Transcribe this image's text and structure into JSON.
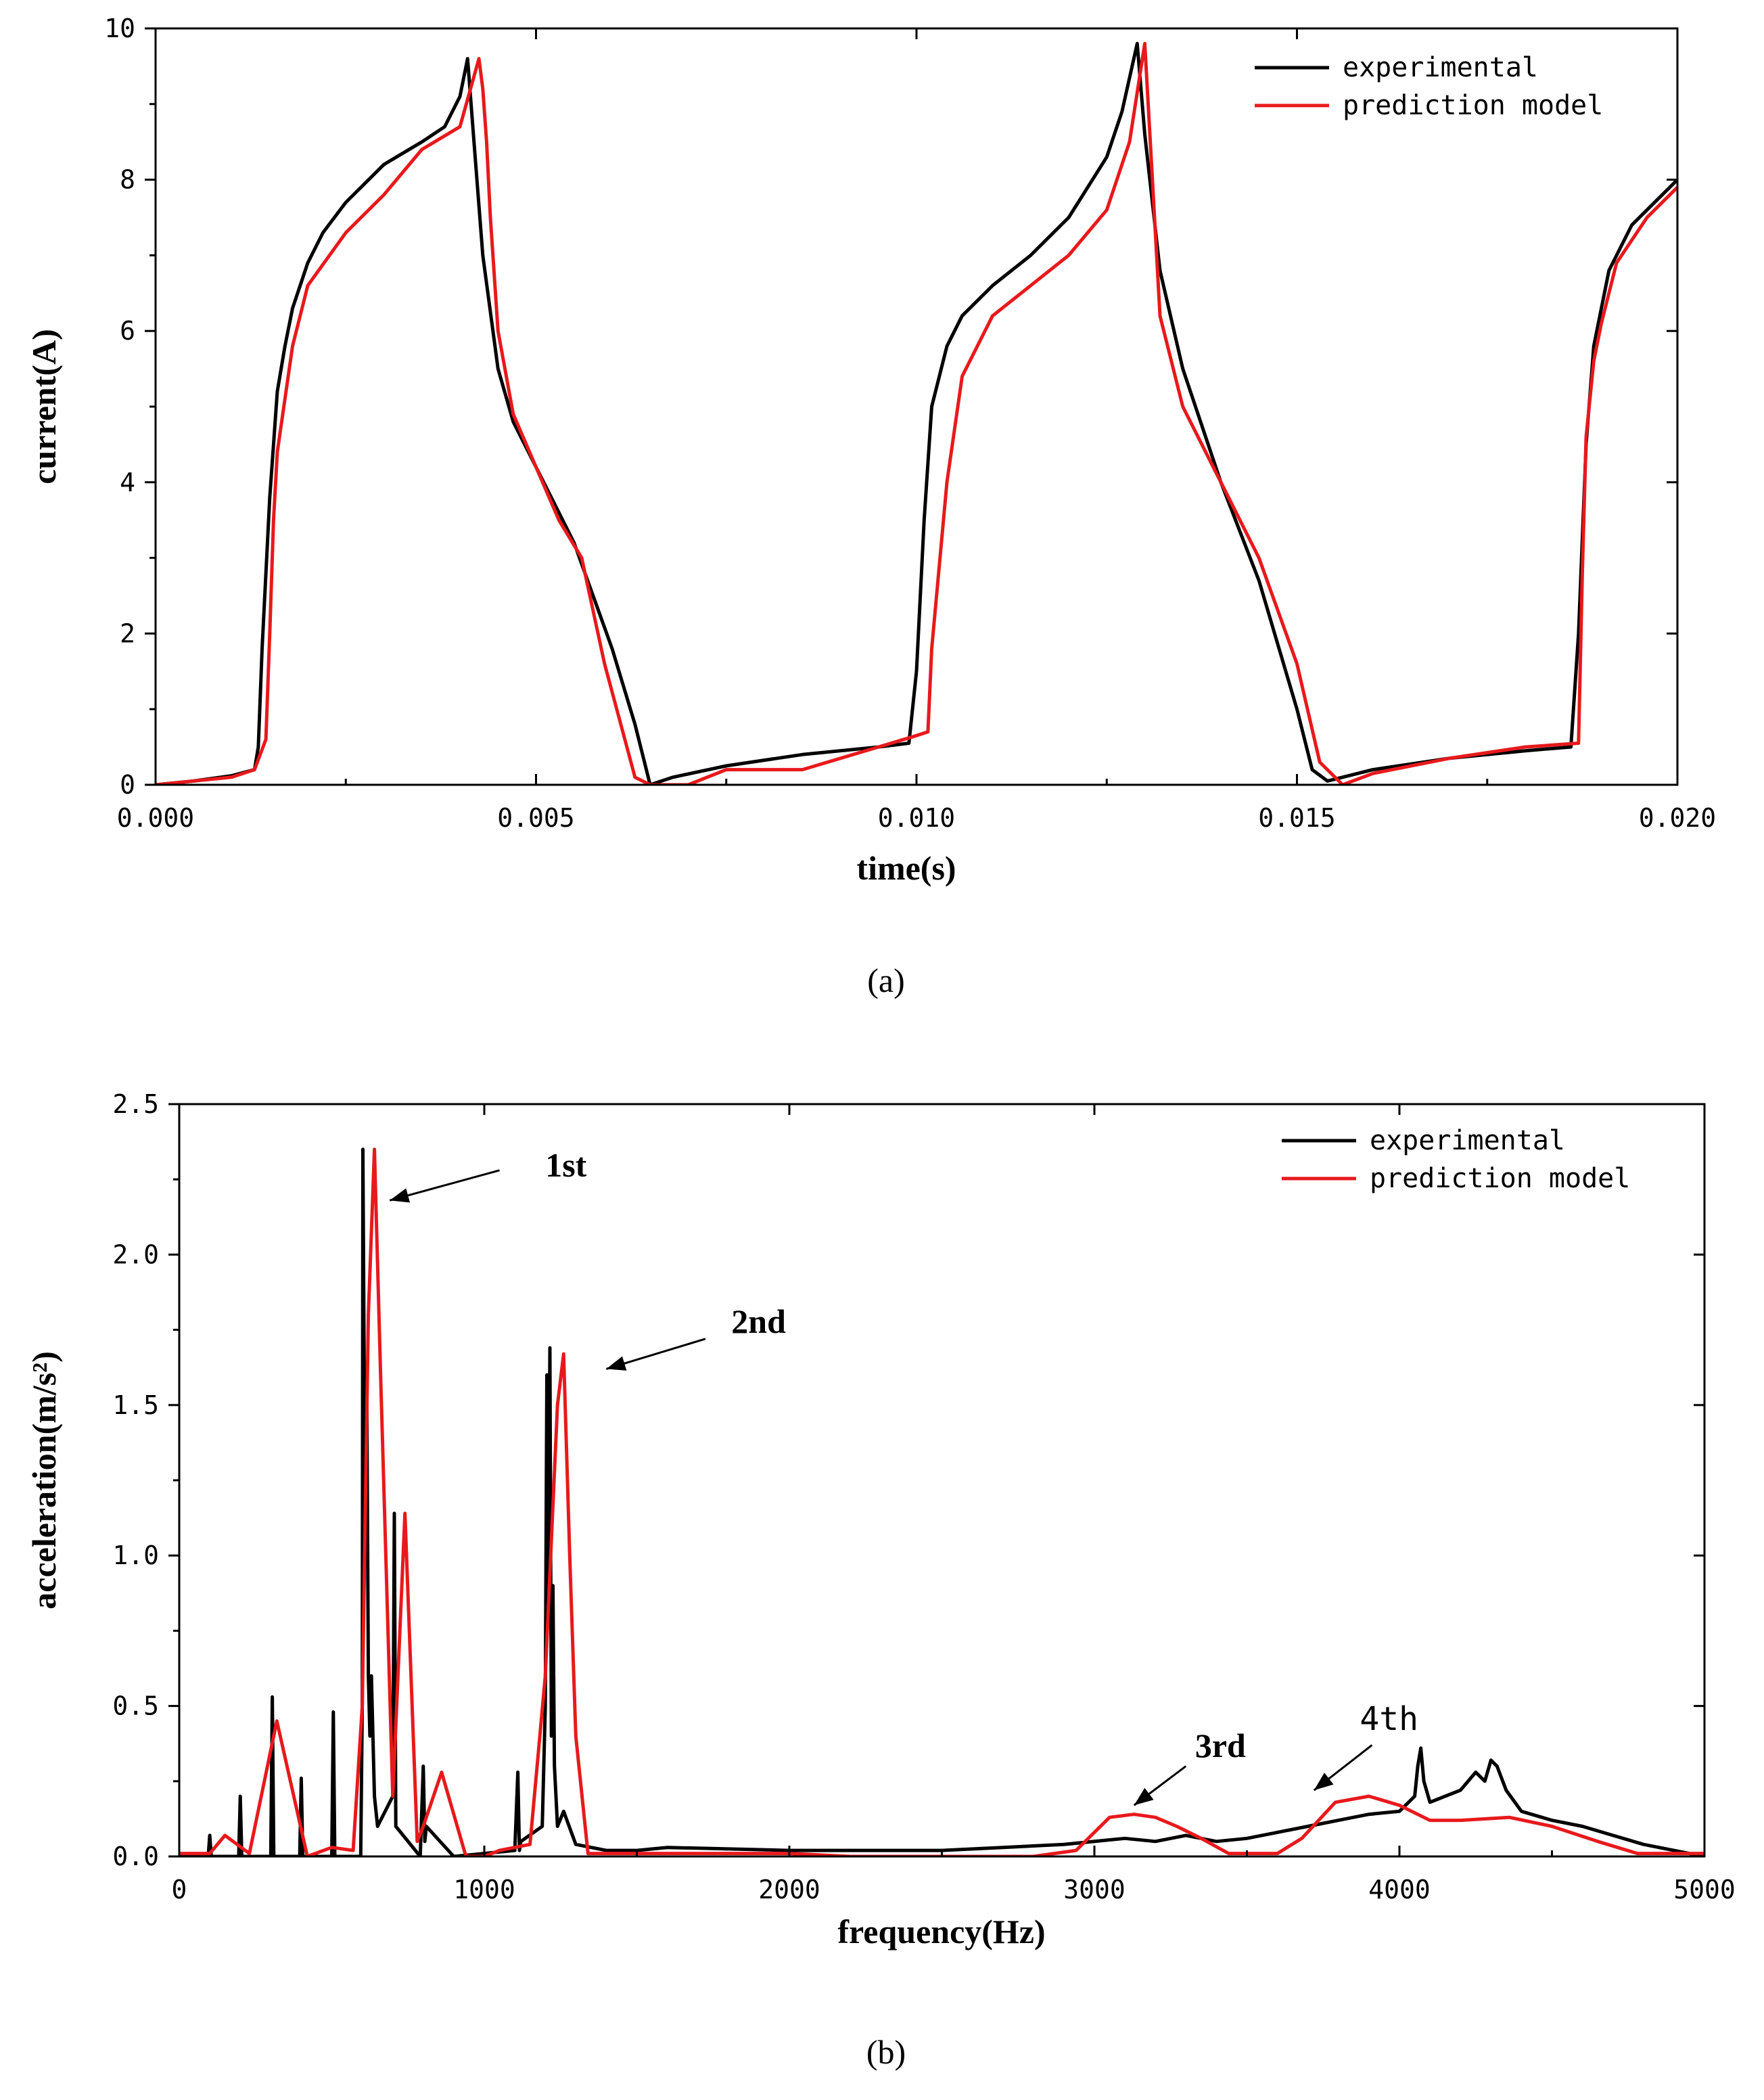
{
  "chart_data": [
    {
      "type": "line",
      "panel_label": "(a)",
      "xlabel": "time(s)",
      "ylabel": "current(A)",
      "xlim": [
        0,
        0.02
      ],
      "ylim": [
        0,
        10
      ],
      "xticks": [
        {
          "v": 0.0,
          "label": "0.000"
        },
        {
          "v": 0.005,
          "label": "0.005"
        },
        {
          "v": 0.01,
          "label": "0.010"
        },
        {
          "v": 0.015,
          "label": "0.015"
        },
        {
          "v": 0.02,
          "label": "0.020"
        }
      ],
      "yticks": [
        {
          "v": 0,
          "label": "0"
        },
        {
          "v": 2,
          "label": "2"
        },
        {
          "v": 4,
          "label": "4"
        },
        {
          "v": 6,
          "label": "6"
        },
        {
          "v": 8,
          "label": "8"
        },
        {
          "v": 10,
          "label": "10"
        }
      ],
      "legend_position": "top-right",
      "series": [
        {
          "name": "experimental",
          "color": "#000000",
          "x": [
            0,
            0.0005,
            0.001,
            0.0013,
            0.00135,
            0.0014,
            0.0015,
            0.0016,
            0.0017,
            0.0018,
            0.002,
            0.0022,
            0.0025,
            0.003,
            0.0035,
            0.0038,
            0.004,
            0.0041,
            0.0042,
            0.0043,
            0.0045,
            0.0047,
            0.005,
            0.0055,
            0.006,
            0.0063,
            0.0065,
            0.0068,
            0.0075,
            0.0085,
            0.0095,
            0.0099,
            0.01,
            0.0101,
            0.0102,
            0.0104,
            0.0106,
            0.011,
            0.0115,
            0.012,
            0.0125,
            0.0127,
            0.0129,
            0.013,
            0.0132,
            0.0135,
            0.014,
            0.0145,
            0.015,
            0.0152,
            0.0154,
            0.016,
            0.017,
            0.018,
            0.0186,
            0.0187,
            0.0188,
            0.0189,
            0.0191,
            0.0194,
            0.02
          ],
          "y": [
            0.0,
            0.05,
            0.12,
            0.2,
            0.5,
            1.8,
            3.8,
            5.2,
            5.8,
            6.3,
            6.9,
            7.3,
            7.7,
            8.2,
            8.5,
            8.7,
            9.1,
            9.6,
            8.3,
            7.0,
            5.5,
            4.8,
            4.2,
            3.2,
            1.8,
            0.8,
            0.0,
            0.1,
            0.25,
            0.4,
            0.5,
            0.55,
            1.5,
            3.5,
            5.0,
            5.8,
            6.2,
            6.6,
            7.0,
            7.5,
            8.3,
            8.9,
            9.8,
            8.6,
            6.8,
            5.5,
            4.0,
            2.7,
            1.0,
            0.2,
            0.05,
            0.2,
            0.35,
            0.45,
            0.5,
            2.0,
            4.5,
            5.8,
            6.8,
            7.4,
            8.0
          ]
        },
        {
          "name": "prediction model",
          "color": "#e8191c",
          "x": [
            0,
            0.001,
            0.0013,
            0.00145,
            0.0015,
            0.00155,
            0.0016,
            0.0018,
            0.002,
            0.0025,
            0.003,
            0.0035,
            0.004,
            0.00425,
            0.0043,
            0.00435,
            0.0044,
            0.0045,
            0.0047,
            0.005,
            0.0053,
            0.0056,
            0.0059,
            0.0063,
            0.0065,
            0.007,
            0.0075,
            0.008,
            0.0085,
            0.0095,
            0.01,
            0.01015,
            0.0102,
            0.0104,
            0.0106,
            0.011,
            0.0115,
            0.012,
            0.0125,
            0.0128,
            0.013,
            0.0131,
            0.0132,
            0.0135,
            0.014,
            0.0145,
            0.015,
            0.0153,
            0.0156,
            0.016,
            0.017,
            0.018,
            0.0187,
            0.01875,
            0.0188,
            0.0189,
            0.019,
            0.0192,
            0.0196,
            0.02
          ],
          "y": [
            0.0,
            0.1,
            0.2,
            0.6,
            2.0,
            3.5,
            4.4,
            5.8,
            6.6,
            7.3,
            7.8,
            8.4,
            8.7,
            9.6,
            9.2,
            8.5,
            7.5,
            6.0,
            4.9,
            4.2,
            3.5,
            3.0,
            1.6,
            0.1,
            0.0,
            0.0,
            0.2,
            0.2,
            0.2,
            0.5,
            0.65,
            0.7,
            1.8,
            4.0,
            5.4,
            6.2,
            6.6,
            7.0,
            7.6,
            8.5,
            9.8,
            8.0,
            6.2,
            5.0,
            4.0,
            3.0,
            1.6,
            0.3,
            0.0,
            0.15,
            0.35,
            0.5,
            0.55,
            2.8,
            4.6,
            5.6,
            6.1,
            6.9,
            7.5,
            7.9
          ]
        }
      ]
    },
    {
      "type": "line",
      "panel_label": "(b)",
      "xlabel": "frequency(Hz)",
      "ylabel": "acceleration(m/s²)",
      "xlim": [
        0,
        5000
      ],
      "ylim": [
        0,
        2.5
      ],
      "xticks": [
        {
          "v": 0,
          "label": "0"
        },
        {
          "v": 1000,
          "label": "1000"
        },
        {
          "v": 2000,
          "label": "2000"
        },
        {
          "v": 3000,
          "label": "3000"
        },
        {
          "v": 4000,
          "label": "4000"
        },
        {
          "v": 5000,
          "label": "5000"
        }
      ],
      "yticks": [
        {
          "v": 0.0,
          "label": "0.0"
        },
        {
          "v": 0.5,
          "label": "0.5"
        },
        {
          "v": 1.0,
          "label": "1.0"
        },
        {
          "v": 1.5,
          "label": "1.5"
        },
        {
          "v": 2.0,
          "label": "2.0"
        },
        {
          "v": 2.5,
          "label": "2.5"
        }
      ],
      "legend_position": "top-right",
      "series": [
        {
          "name": "experimental",
          "color": "#000000",
          "x": [
            0,
            95,
            100,
            105,
            195,
            200,
            205,
            300,
            305,
            310,
            395,
            400,
            405,
            500,
            505,
            510,
            595,
            600,
            602,
            610,
            615,
            620,
            625,
            630,
            640,
            650,
            700,
            705,
            710,
            790,
            800,
            805,
            810,
            900,
            1000,
            1100,
            1110,
            1115,
            1120,
            1190,
            1200,
            1205,
            1210,
            1215,
            1220,
            1225,
            1230,
            1235,
            1240,
            1260,
            1300,
            1400,
            1500,
            1600,
            2000,
            2500,
            2700,
            2900,
            3000,
            3100,
            3200,
            3300,
            3400,
            3500,
            3600,
            3700,
            3800,
            3900,
            4000,
            4050,
            4060,
            4070,
            4080,
            4100,
            4150,
            4200,
            4250,
            4280,
            4300,
            4320,
            4350,
            4400,
            4500,
            4600,
            4700,
            4800,
            5000
          ],
          "y": [
            0.0,
            0.0,
            0.07,
            0.0,
            0.0,
            0.2,
            0.0,
            0.0,
            0.53,
            0.0,
            0.0,
            0.26,
            0.0,
            0.0,
            0.48,
            0.0,
            0.0,
            0.5,
            2.35,
            1.0,
            1.5,
            0.6,
            0.4,
            0.6,
            0.2,
            0.1,
            0.2,
            1.14,
            0.1,
            0.0,
            0.3,
            0.05,
            0.1,
            0.0,
            0.01,
            0.02,
            0.28,
            0.02,
            0.05,
            0.1,
            0.5,
            1.6,
            0.8,
            1.69,
            0.4,
            0.9,
            0.3,
            0.2,
            0.1,
            0.15,
            0.04,
            0.02,
            0.02,
            0.03,
            0.02,
            0.02,
            0.03,
            0.04,
            0.05,
            0.06,
            0.05,
            0.07,
            0.05,
            0.06,
            0.08,
            0.1,
            0.12,
            0.14,
            0.15,
            0.2,
            0.3,
            0.36,
            0.25,
            0.18,
            0.2,
            0.22,
            0.28,
            0.25,
            0.32,
            0.3,
            0.22,
            0.15,
            0.12,
            0.1,
            0.07,
            0.04,
            0.0
          ]
        },
        {
          "name": "prediction model",
          "color": "#e8191c",
          "x": [
            0,
            100,
            150,
            230,
            320,
            420,
            500,
            570,
            600,
            620,
            640,
            660,
            700,
            740,
            780,
            800,
            860,
            940,
            1000,
            1050,
            1150,
            1200,
            1240,
            1260,
            1280,
            1300,
            1340,
            1400,
            1600,
            2000,
            2200,
            2500,
            2800,
            2940,
            3050,
            3130,
            3200,
            3270,
            3350,
            3440,
            3600,
            3680,
            3790,
            3900,
            4000,
            4100,
            4200,
            4360,
            4500,
            4650,
            4780,
            5000
          ],
          "y": [
            0.01,
            0.01,
            0.07,
            0.01,
            0.45,
            0.0,
            0.03,
            0.02,
            0.5,
            1.8,
            2.35,
            1.6,
            0.2,
            1.14,
            0.05,
            0.1,
            0.28,
            0.0,
            0.0,
            0.02,
            0.04,
            0.6,
            1.5,
            1.67,
            1.0,
            0.4,
            0.01,
            0.01,
            0.01,
            0.01,
            0.0,
            0.0,
            0.0,
            0.02,
            0.13,
            0.14,
            0.13,
            0.1,
            0.06,
            0.01,
            0.01,
            0.06,
            0.18,
            0.2,
            0.17,
            0.12,
            0.12,
            0.13,
            0.1,
            0.05,
            0.01,
            0.01
          ]
        }
      ],
      "annotations": [
        {
          "text": "1st",
          "style": "bold",
          "x": 1200,
          "y": 2.26,
          "arrow_from": [
            1050,
            2.28
          ],
          "arrow_to": [
            690,
            2.18
          ]
        },
        {
          "text": "2nd",
          "style": "bold",
          "x": 1810,
          "y": 1.74,
          "arrow_from": [
            1725,
            1.72
          ],
          "arrow_to": [
            1400,
            1.62
          ]
        },
        {
          "text": "3rd",
          "style": "bold",
          "x": 3330,
          "y": 0.33,
          "arrow_from": [
            3300,
            0.3
          ],
          "arrow_to": [
            3130,
            0.17
          ]
        },
        {
          "text": "4th",
          "style": "normal",
          "x": 3870,
          "y": 0.42,
          "arrow_from": [
            3910,
            0.37
          ],
          "arrow_to": [
            3720,
            0.22
          ]
        }
      ]
    }
  ]
}
